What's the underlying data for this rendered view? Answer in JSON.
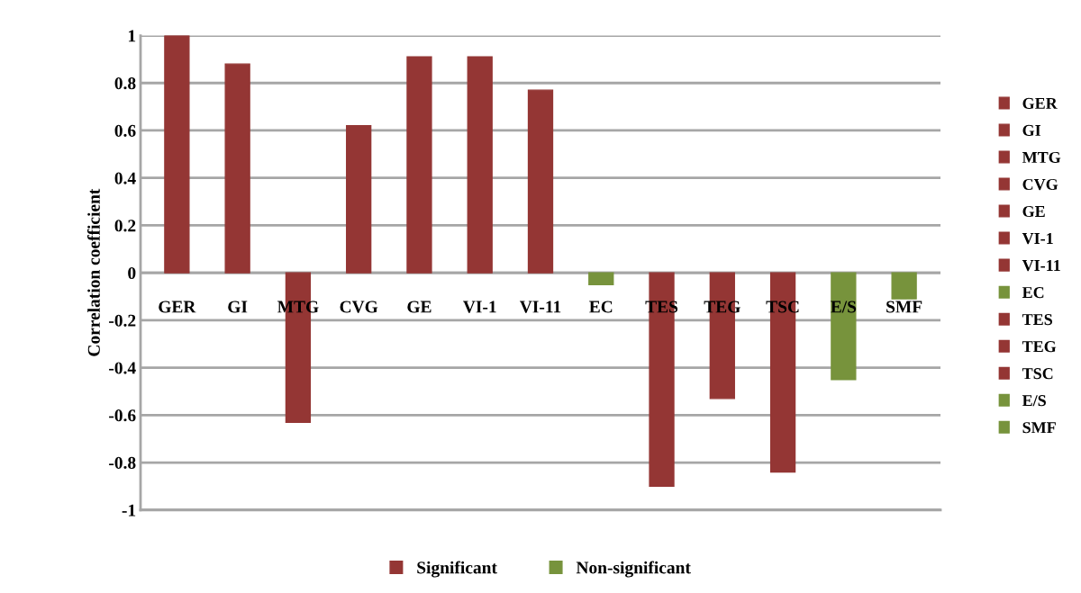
{
  "chart_data": {
    "type": "bar",
    "ylabel": "Correlation coefficient",
    "categories": [
      "GER",
      "GI",
      "MTG",
      "CVG",
      "GE",
      "VI-1",
      "VI-11",
      "EC",
      "TES",
      "TEG",
      "TSC",
      "E/S",
      "SMF"
    ],
    "series": [
      {
        "name": "Significant",
        "color": "#943634",
        "values": [
          1.0,
          0.88,
          -0.63,
          0.62,
          0.91,
          0.91,
          0.77,
          null,
          -0.9,
          -0.53,
          -0.84,
          null,
          null
        ]
      },
      {
        "name": "Non-significant",
        "color": "#77933c",
        "values": [
          null,
          null,
          null,
          null,
          null,
          null,
          null,
          -0.05,
          null,
          null,
          null,
          -0.45,
          -0.11
        ]
      }
    ],
    "ylim": [
      -1,
      1
    ],
    "yticks": [
      -1,
      -0.8,
      -0.6,
      -0.4,
      -0.2,
      0,
      0.2,
      0.4,
      0.6,
      0.8,
      1
    ],
    "grid": "y",
    "legend": "bottom"
  }
}
